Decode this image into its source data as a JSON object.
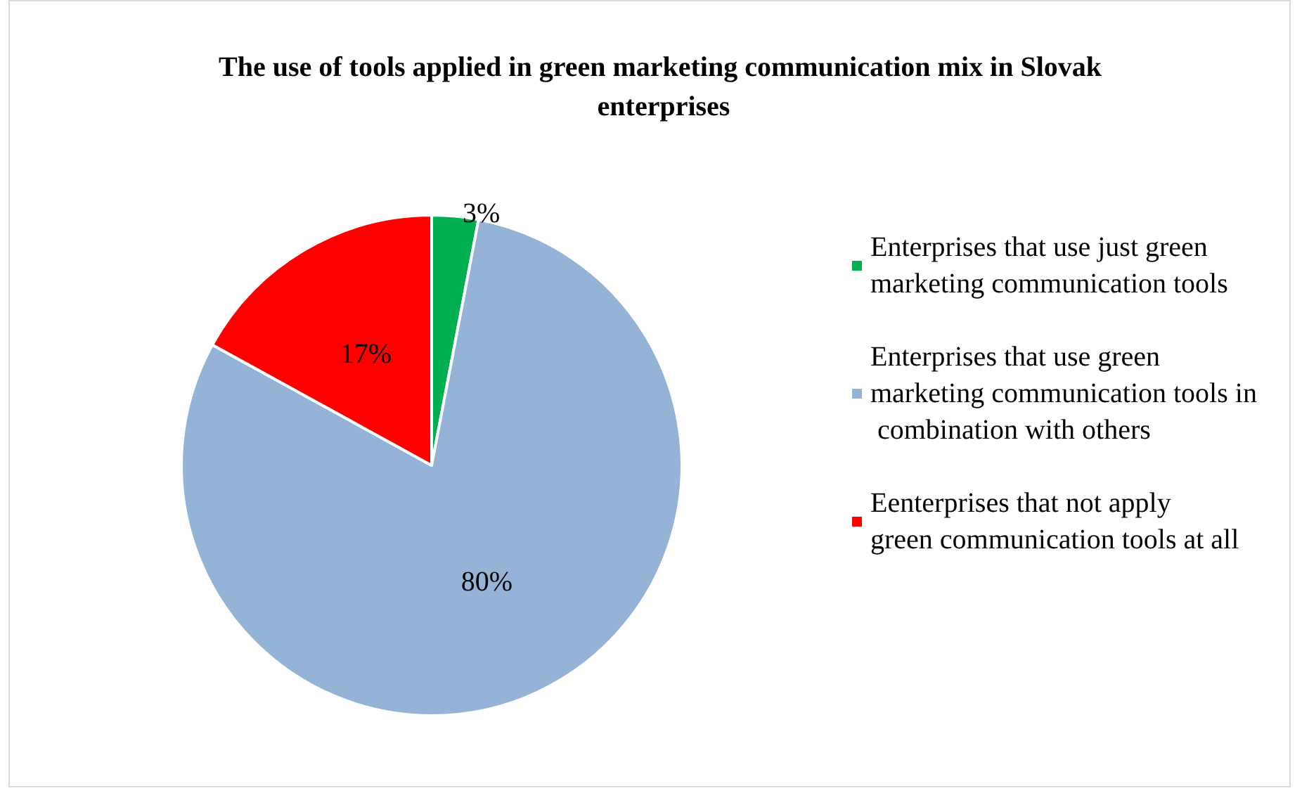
{
  "chart_data": {
    "type": "pie",
    "title": "The use of tools applied in green marketing communication mix in Slovak enterprises",
    "categories": [
      "Enterprises that use just green marketing communication tools",
      "Enterprises that use green marketing communication tools in combination with others",
      "Eenterprises that not apply green communication tools at all"
    ],
    "values": [
      3,
      80,
      17
    ],
    "value_labels": [
      "3%",
      "80%",
      "17%"
    ],
    "colors": [
      "#00b050",
      "#95b3d7",
      "#ff0000"
    ],
    "legend": "right"
  }
}
